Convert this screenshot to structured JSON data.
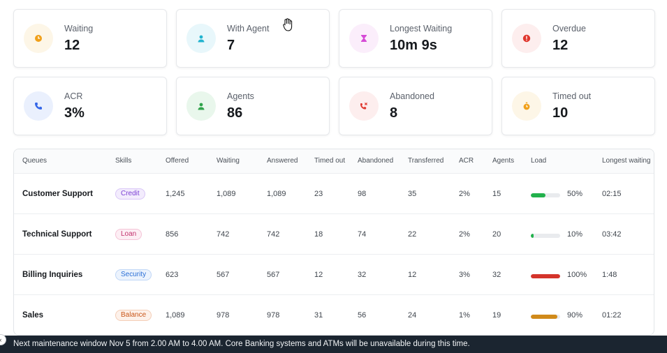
{
  "stats": [
    {
      "label": "Waiting",
      "value": "12",
      "icon": "clock-icon",
      "bg": "#fdf6e7",
      "fg": "#f0a01a"
    },
    {
      "label": "With Agent",
      "value": "7",
      "icon": "user-icon",
      "bg": "#e8f7fb",
      "fg": "#22b3cf"
    },
    {
      "label": "Longest Waiting",
      "value": "10m 9s",
      "icon": "hourglass-icon",
      "bg": "#fbeefb",
      "fg": "#d64bd6"
    },
    {
      "label": "Overdue",
      "value": "12",
      "icon": "alert-icon",
      "bg": "#fdeeee",
      "fg": "#e0382f"
    },
    {
      "label": "ACR",
      "value": "3%",
      "icon": "phone-icon",
      "bg": "#eaf0fd",
      "fg": "#3466e8"
    },
    {
      "label": "Agents",
      "value": "86",
      "icon": "agent-icon",
      "bg": "#e9f7ec",
      "fg": "#2fa34a"
    },
    {
      "label": "Abandoned",
      "value": "8",
      "icon": "phone-missed-icon",
      "bg": "#fdeeee",
      "fg": "#e0382f"
    },
    {
      "label": "Timed out",
      "value": "10",
      "icon": "stopwatch-icon",
      "bg": "#fdf6e7",
      "fg": "#f0a01a"
    }
  ],
  "table": {
    "headers": [
      "Queues",
      "Skills",
      "Offered",
      "Waiting",
      "Answered",
      "Timed out",
      "Abandoned",
      "Transferred",
      "ACR",
      "Agents",
      "Load",
      "Longest waiting"
    ],
    "rows": [
      {
        "queue": "Customer Support",
        "skill": "Credit",
        "skill_color": "#7b3fd4",
        "skill_bg": "#f3ecfd",
        "skill_border": "#d9c6f7",
        "offered": "1,245",
        "waiting": "1,089",
        "answered": "1,089",
        "timed_out": "23",
        "abandoned": "98",
        "transferred": "35",
        "acr": "2%",
        "agents": "15",
        "load": 50,
        "load_label": "50%",
        "load_color": "#22b14c",
        "longest": "02:15"
      },
      {
        "queue": "Technical Support",
        "skill": "Loan",
        "skill_color": "#c2336e",
        "skill_bg": "#fdeef4",
        "skill_border": "#f4c3d6",
        "offered": "856",
        "waiting": "742",
        "answered": "742",
        "timed_out": "18",
        "abandoned": "74",
        "transferred": "22",
        "acr": "2%",
        "agents": "20",
        "load": 10,
        "load_label": "10%",
        "load_color": "#22b14c",
        "longest": "03:42"
      },
      {
        "queue": "Billing Inquiries",
        "skill": "Security",
        "skill_color": "#2a6fd6",
        "skill_bg": "#ecf3fd",
        "skill_border": "#bfd6f6",
        "offered": "623",
        "waiting": "567",
        "answered": "567",
        "timed_out": "12",
        "abandoned": "32",
        "transferred": "12",
        "acr": "3%",
        "agents": "32",
        "load": 100,
        "load_label": "100%",
        "load_color": "#d4342b",
        "longest": "1:48"
      },
      {
        "queue": "Sales",
        "skill": "Balance",
        "skill_color": "#c9561a",
        "skill_bg": "#fdf1ea",
        "skill_border": "#f4cdb6",
        "offered": "1,089",
        "waiting": "978",
        "answered": "978",
        "timed_out": "31",
        "abandoned": "56",
        "transferred": "24",
        "acr": "1%",
        "agents": "19",
        "load": 90,
        "load_label": "90%",
        "load_color": "#d08a1a",
        "longest": "01:22"
      }
    ]
  },
  "footer": {
    "message": "Next maintenance window Nov 5 from 2.00 AM to 4.00 AM. Core Banking systems and ATMs will be unavailable during this time.",
    "toggle_glyph": "‹"
  }
}
